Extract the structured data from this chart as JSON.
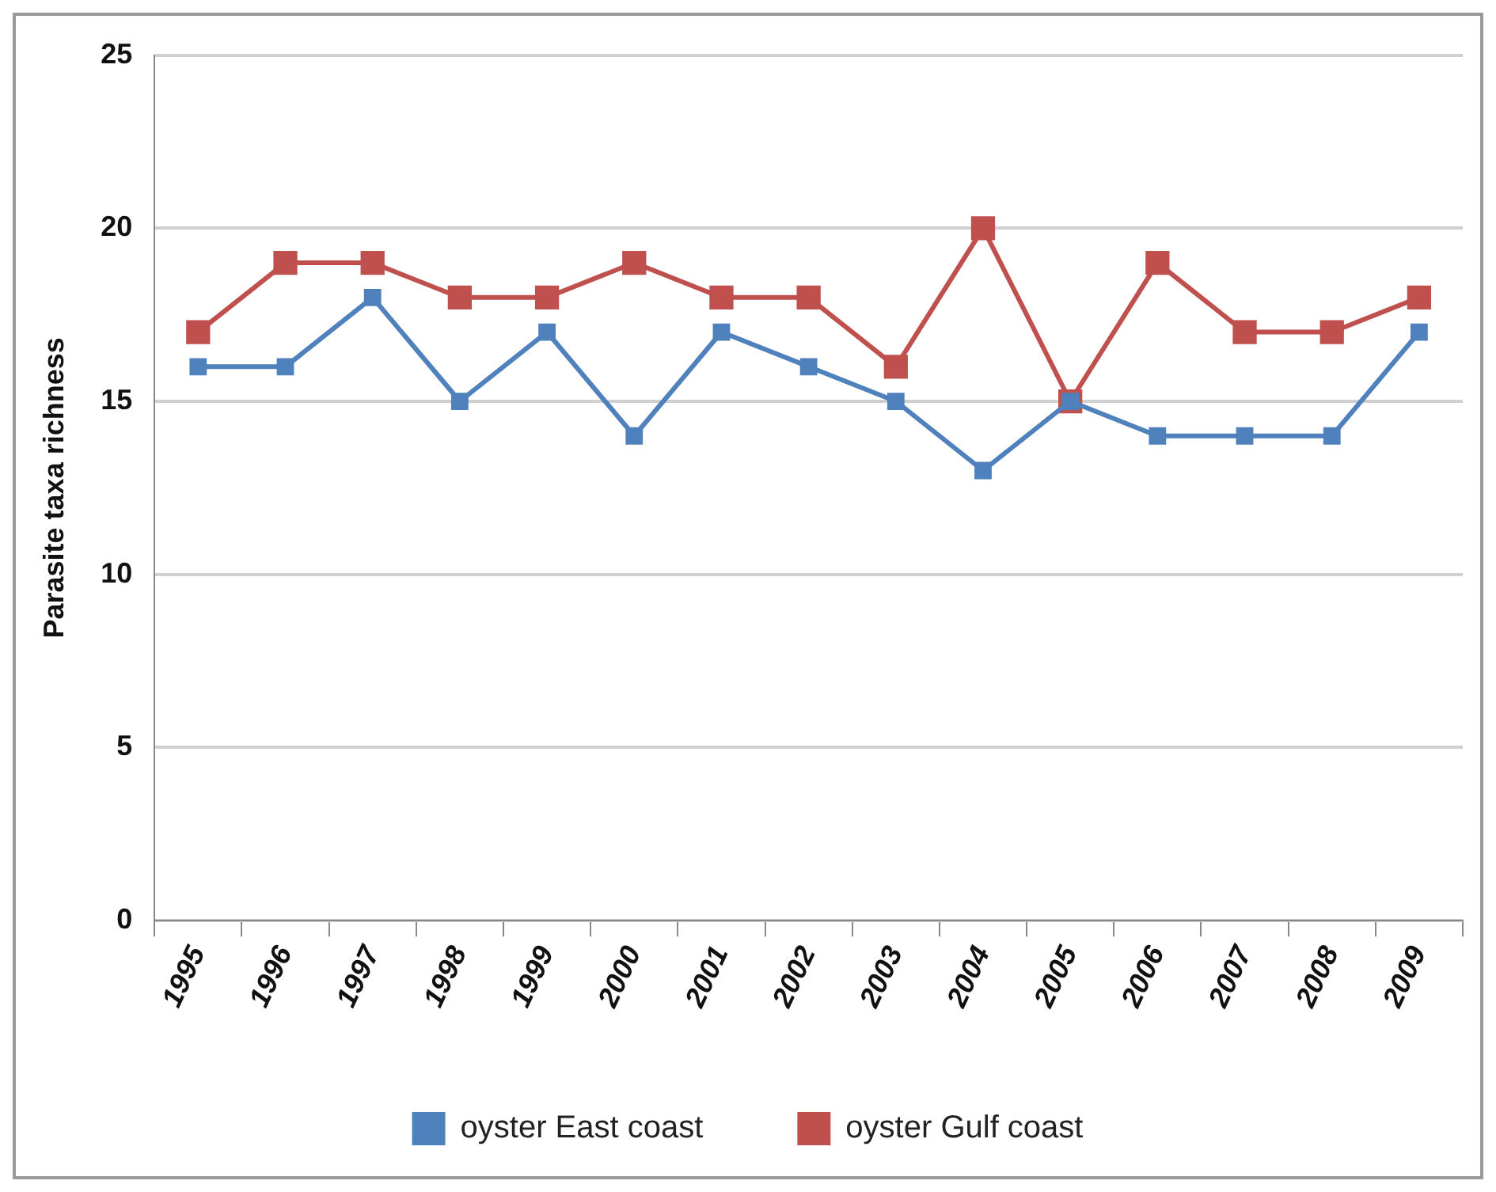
{
  "chart_data": {
    "type": "line",
    "ylabel": "Parasite taxa richness",
    "categories": [
      "1995",
      "1996",
      "1997",
      "1998",
      "1999",
      "2000",
      "2001",
      "2002",
      "2003",
      "2004",
      "2005",
      "2006",
      "2007",
      "2008",
      "2009"
    ],
    "series": [
      {
        "name": "oyster East coast",
        "color": "#4f81bd",
        "values": [
          16,
          16,
          18,
          15,
          17,
          14,
          17,
          16,
          15,
          13,
          15,
          14,
          14,
          14,
          17
        ]
      },
      {
        "name": "oyster Gulf coast",
        "color": "#c0504d",
        "values": [
          17,
          19,
          19,
          18,
          18,
          19,
          18,
          18,
          16,
          20,
          15,
          19,
          17,
          17,
          18
        ]
      }
    ],
    "ylim": [
      0,
      25
    ],
    "yticks": [
      0,
      5,
      10,
      15,
      20,
      25
    ],
    "grid": "y",
    "legend": "bottom",
    "marker": "square",
    "line_style": "solid"
  }
}
